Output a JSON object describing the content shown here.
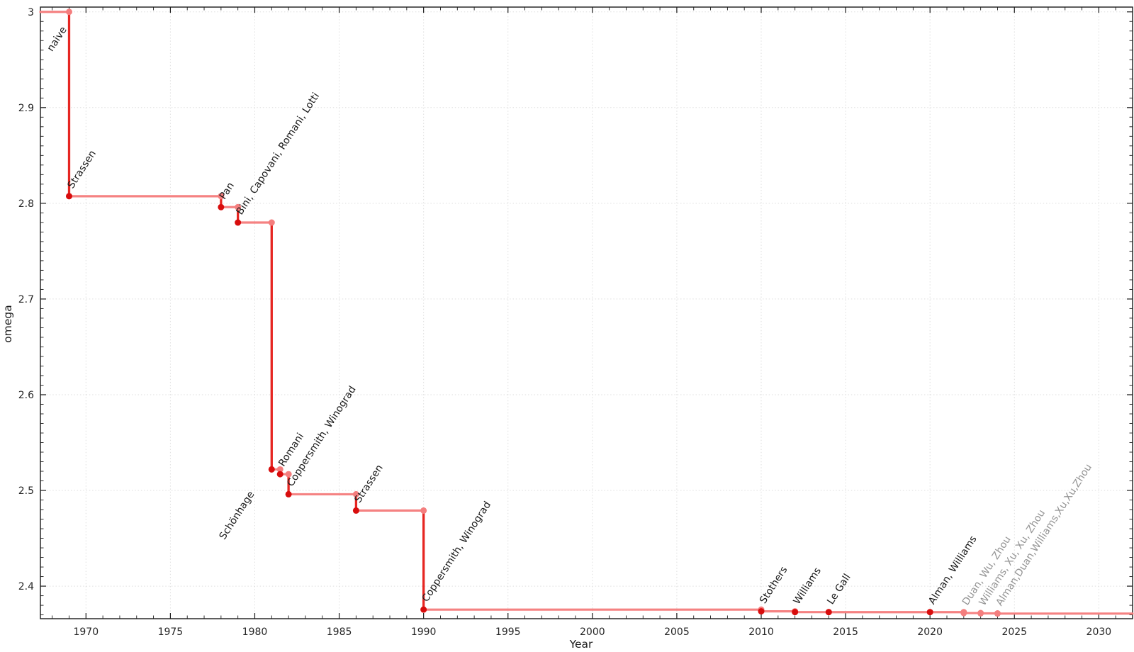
{
  "chart_data": {
    "type": "line",
    "subtype": "step-post",
    "title": "",
    "xlabel": "Year",
    "ylabel": "omega",
    "xlim": [
      1967.3,
      2032
    ],
    "ylim": [
      2.366,
      3.005
    ],
    "grid": "dotted-major-only",
    "legend": "none",
    "x_major_ticks": [
      1970,
      1975,
      1980,
      1985,
      1990,
      1995,
      2000,
      2005,
      2010,
      2015,
      2020,
      2025,
      2030
    ],
    "x_minor_step_years": 1,
    "y_major_ticks": [
      {
        "v": 2.4,
        "label": "2.4"
      },
      {
        "v": 2.5,
        "label": "2.5"
      },
      {
        "v": 2.6,
        "label": "2.6"
      },
      {
        "v": 2.7,
        "label": "2.7"
      },
      {
        "v": 2.8,
        "label": "2.8"
      },
      {
        "v": 2.9,
        "label": "2.9"
      },
      {
        "v": 3.0,
        "label": "3"
      }
    ],
    "y_minor_step": 0.01,
    "baseline": {
      "label": "naive",
      "omega": 3,
      "label_anchor": [
        1968.0,
        2.958
      ]
    },
    "discoveries": [
      {
        "label": "Strassen",
        "year": 1969,
        "omega": 2.8074
      },
      {
        "label": "Pan",
        "year": 1978,
        "omega": 2.796
      },
      {
        "label": "Bini, Capovani, Romani, Lotti",
        "year": 1979,
        "omega": 2.7799
      },
      {
        "label": "Schönhage",
        "year": 1981,
        "omega": 2.522,
        "label_anchor": [
          1978.2,
          2.448
        ]
      },
      {
        "label": "Romani",
        "year": 1981.5,
        "omega": 2.517
      },
      {
        "label": "Coppersmith, Winograd",
        "year": 1982,
        "omega": 2.496
      },
      {
        "label": "Strassen",
        "year": 1986,
        "omega": 2.479
      },
      {
        "label": "Coppersmith, Winograd",
        "year": 1990,
        "omega": 2.3755
      },
      {
        "label": "Stothers",
        "year": 2010,
        "omega": 2.3737
      },
      {
        "label": "Williams",
        "year": 2012,
        "omega": 2.3729
      },
      {
        "label": "Le Gall",
        "year": 2014,
        "omega": 2.3728639
      },
      {
        "label": "Alman, Williams",
        "year": 2020,
        "omega": 2.3728596
      },
      {
        "label": "Duan, Wu, Zhou",
        "year": 2022,
        "omega": 2.37188,
        "muted": true
      },
      {
        "label": "Williams, Xu, Xu, Zhou",
        "year": 2023,
        "omega": 2.371552,
        "muted": true
      },
      {
        "label": "Alman,Duan,Williams,Xu,Xu,Zhou",
        "year": 2024,
        "omega": 2.371339,
        "muted": true
      }
    ],
    "line_extends_to_right_edge": true,
    "colors": {
      "plateau_line": "#f58282",
      "drop_line": "#e62622",
      "discovery_point": "#d80d0d",
      "plateau_end_point": "#f47e7e",
      "muted_point": "#f47e7e",
      "label_text": "#1a1a1a",
      "muted_label_text": "#949494",
      "grid": "#dedede",
      "axis": "#1a1a1a",
      "tick_label": "#262626",
      "background": "#ffffff"
    }
  }
}
